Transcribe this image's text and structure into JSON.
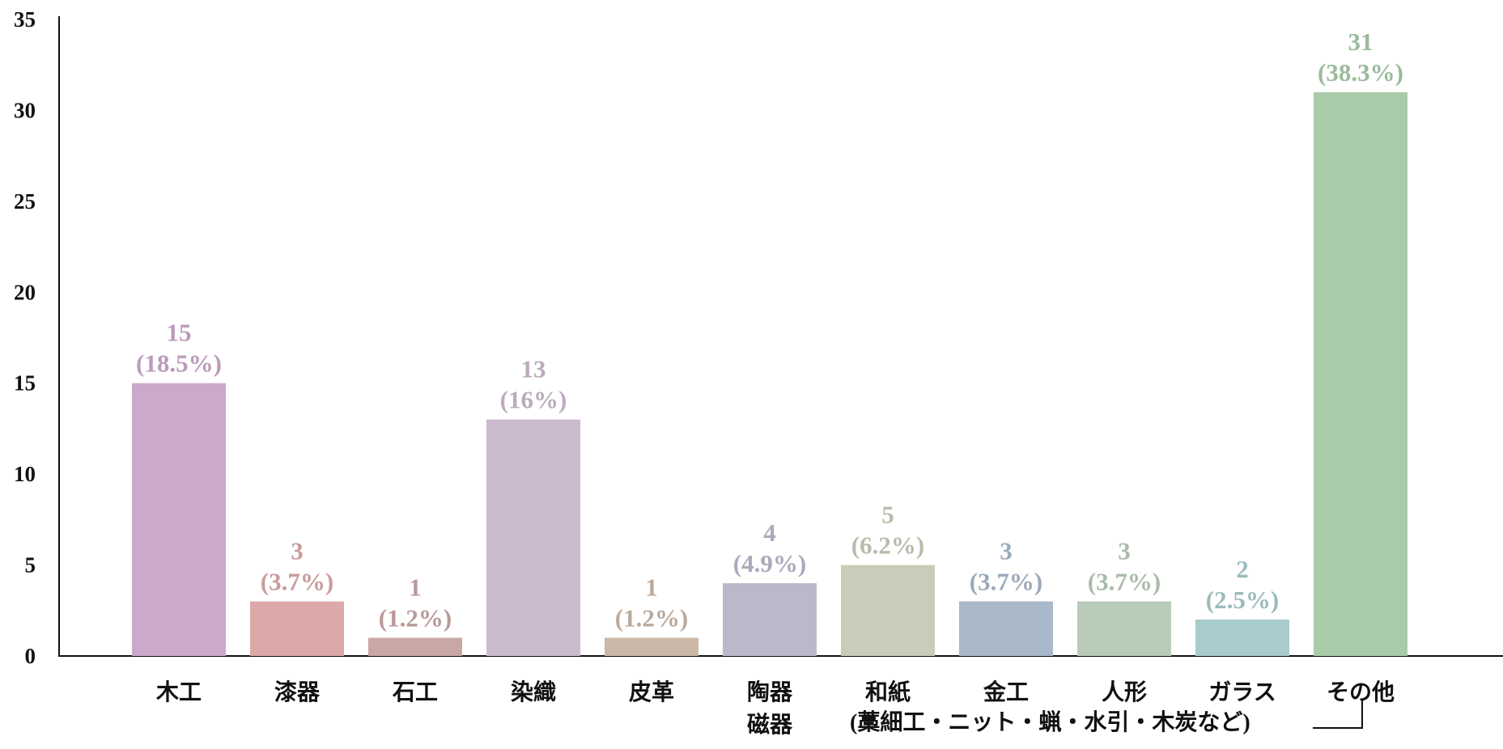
{
  "chart_data": {
    "type": "bar",
    "title": "",
    "xlabel": "",
    "ylabel": "",
    "ylim": [
      0,
      35
    ],
    "yticks": [
      "0",
      "5",
      "10",
      "15",
      "20",
      "25",
      "30",
      "35"
    ],
    "grid": false,
    "categories": [
      [
        "木工"
      ],
      [
        "漆器"
      ],
      [
        "石工"
      ],
      [
        "染織"
      ],
      [
        "皮革"
      ],
      [
        "陶器",
        "磁器"
      ],
      [
        "和紙"
      ],
      [
        "金工"
      ],
      [
        "人形"
      ],
      [
        "ガラス"
      ],
      [
        "その他"
      ]
    ],
    "values": [
      15,
      3,
      1,
      13,
      1,
      4,
      5,
      3,
      3,
      2,
      31
    ],
    "value_labels": [
      "15",
      "3",
      "1",
      "13",
      "1",
      "4",
      "5",
      "3",
      "3",
      "2",
      "31"
    ],
    "percent_labels": [
      "(18.5%)",
      "(3.7%)",
      "(1.2%)",
      "(16%)",
      "(1.2%)",
      "(4.9%)",
      "(6.2%)",
      "(3.7%)",
      "(3.7%)",
      "(2.5%)",
      "(38.3%)"
    ],
    "colors": [
      "#cba9cb",
      "#dca9a9",
      "#c9a7a6",
      "#cbbacd",
      "#cbb8a8",
      "#bab9cb",
      "#cacbb9",
      "#a9b9ca",
      "#b9cbb9",
      "#a8cbcb",
      "#a9cba9"
    ],
    "annotation": "(藁細工・ニット・蝋・水引・木炭など)"
  }
}
